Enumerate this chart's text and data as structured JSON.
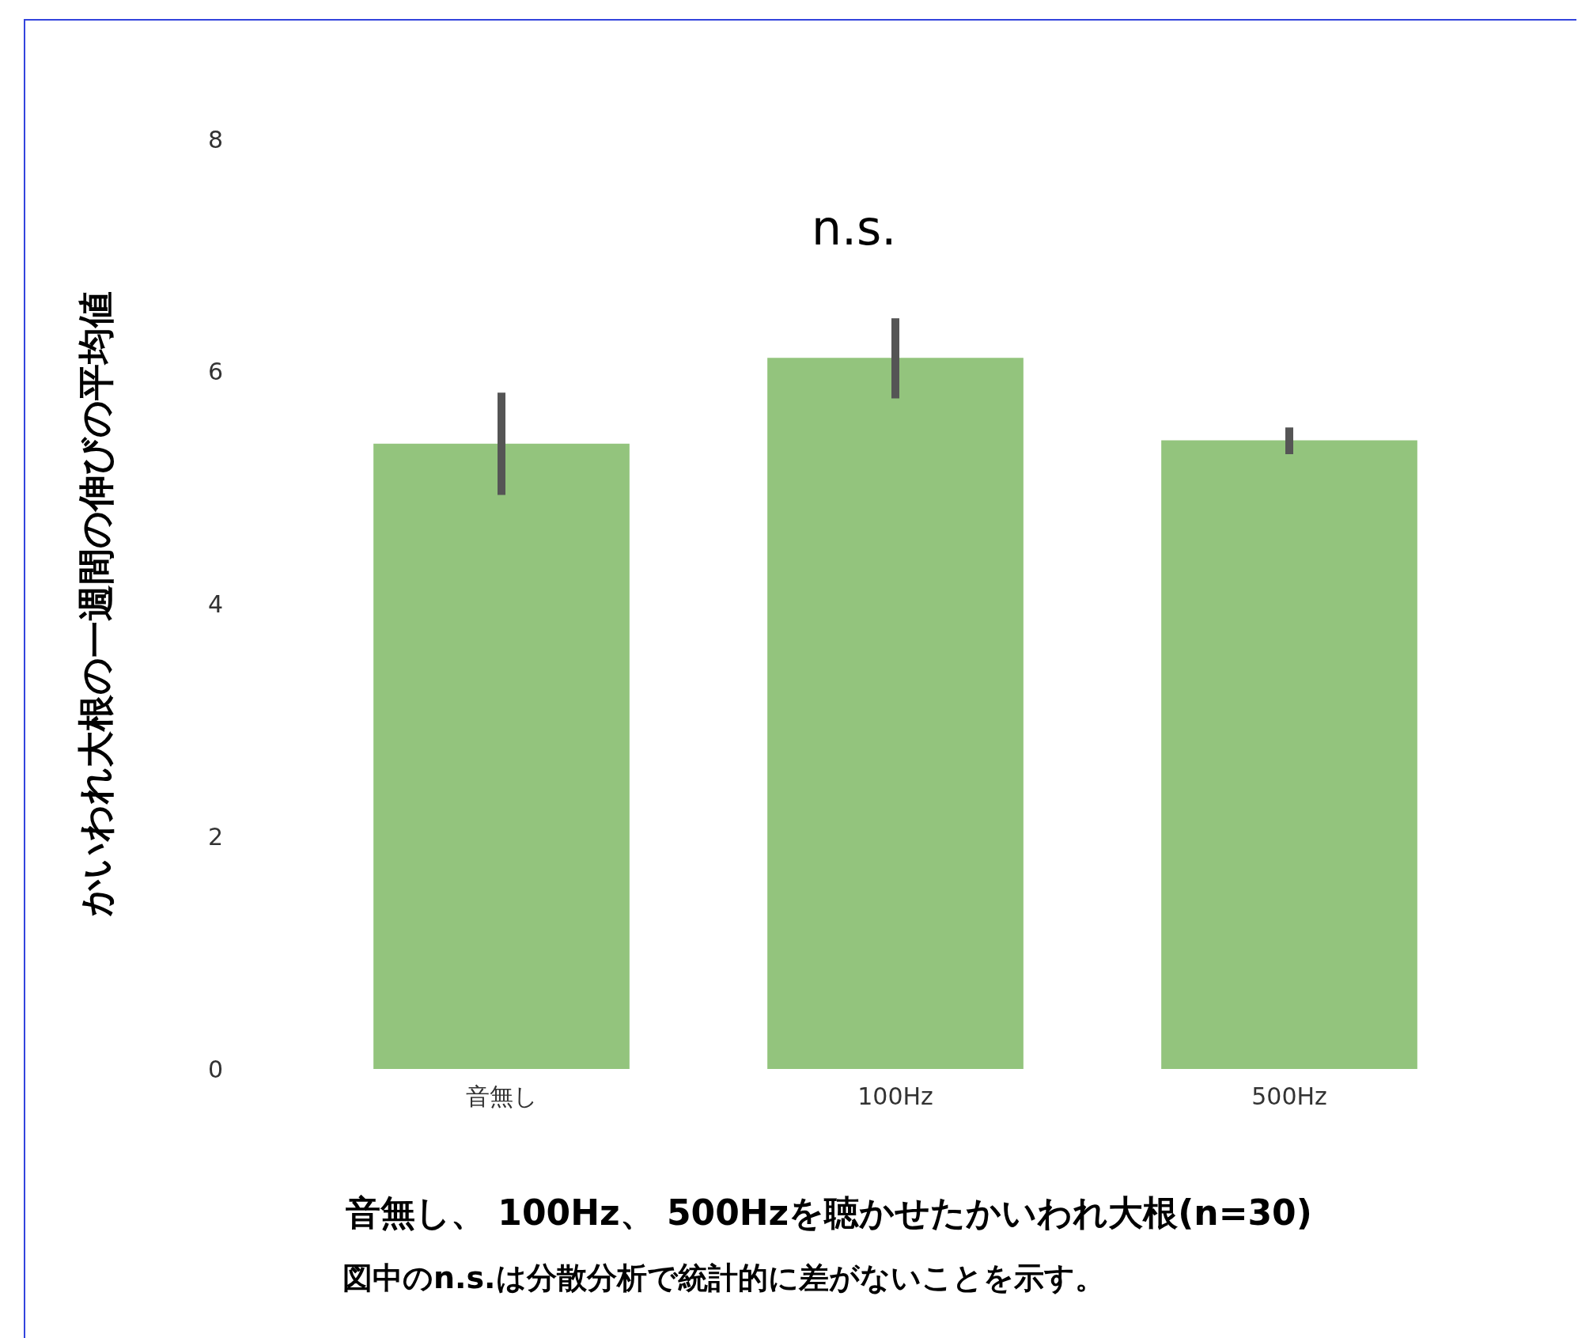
{
  "chart_data": {
    "type": "bar",
    "xlabel": "音無し、 100Hz、 500Hzを聴かせたかいわれ大根(n=30)",
    "ylabel": "かいわれ大根の一週間の伸びの平均値",
    "categories": [
      "音無し",
      "100Hz",
      "500Hz"
    ],
    "values": [
      5.38,
      6.12,
      5.41
    ],
    "errors": [
      [
        4.94,
        5.82
      ],
      [
        5.77,
        6.46
      ],
      [
        5.29,
        5.52
      ]
    ],
    "color": "#93c47d",
    "ylim": [
      0,
      8
    ],
    "yticks": [
      0,
      2,
      4,
      6,
      8
    ],
    "grid": false,
    "annotations": [
      "n.s.",
      "図中のn.s.は分散分析で統計的に差がないことを示す。"
    ]
  }
}
